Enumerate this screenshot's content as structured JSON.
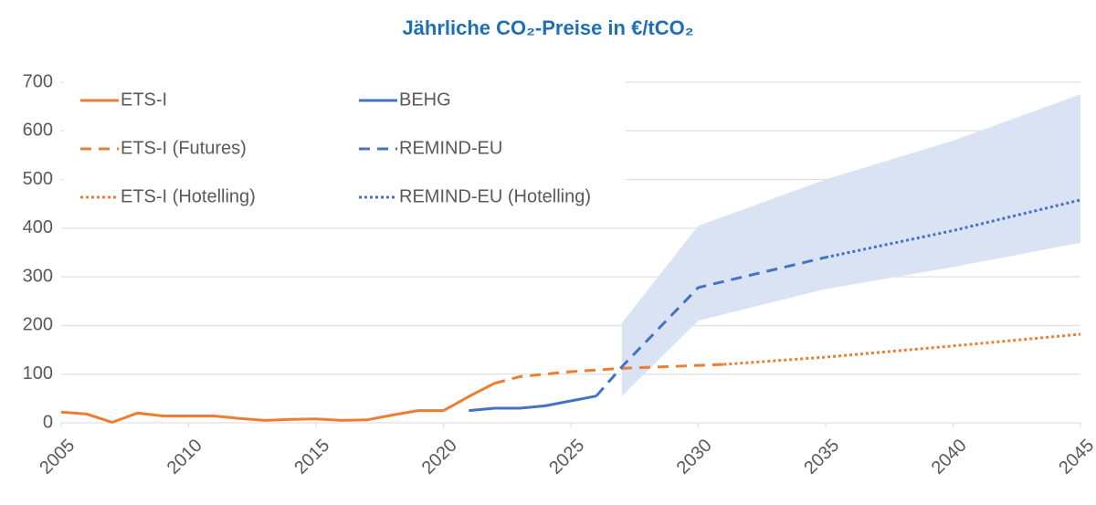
{
  "chart_data": {
    "type": "line",
    "title": "Jährliche CO₂-Preise in €/tCO₂",
    "xlim": [
      2005,
      2045
    ],
    "xticks": [
      2005,
      2010,
      2015,
      2020,
      2025,
      2030,
      2035,
      2040,
      2045
    ],
    "ylim": [
      0,
      700
    ],
    "yticks": [
      0,
      100,
      200,
      300,
      400,
      500,
      600,
      700
    ],
    "grid": true,
    "legend": "upper left",
    "band": {
      "color": "#dae3f3",
      "x": [
        2027,
        2030,
        2035,
        2040,
        2045
      ],
      "lower": [
        55,
        210,
        275,
        320,
        370
      ],
      "upper": [
        205,
        405,
        500,
        580,
        675
      ]
    },
    "series": [
      {
        "name": "ETS-I",
        "color": "#ed7d31",
        "dash": "solid",
        "x": [
          2005,
          2006,
          2007,
          2008,
          2009,
          2010,
          2011,
          2012,
          2013,
          2014,
          2015,
          2016,
          2017,
          2018,
          2019,
          2020,
          2021,
          2022
        ],
        "values": [
          22,
          18,
          1,
          20,
          14,
          14,
          14,
          9,
          5,
          7,
          8,
          5,
          6,
          16,
          25,
          25,
          54,
          81
        ]
      },
      {
        "name": "BEHG",
        "color": "#4472c4",
        "dash": "solid",
        "x": [
          2021,
          2022,
          2023,
          2024,
          2025,
          2026
        ],
        "values": [
          25,
          30,
          30,
          35,
          45,
          55
        ]
      },
      {
        "name": "ETS-I (Futures)",
        "color": "#ed7d31",
        "dash": "dashed",
        "x": [
          2022,
          2023,
          2025,
          2027,
          2030,
          2031
        ],
        "values": [
          81,
          95,
          105,
          112,
          118,
          120
        ]
      },
      {
        "name": "REMIND-EU",
        "color": "#4472c4",
        "dash": "dashed",
        "x": [
          2026,
          2027,
          2030,
          2035
        ],
        "values": [
          55,
          115,
          278,
          340
        ]
      },
      {
        "name": "ETS-I (Hotelling)",
        "color": "#ed7d31",
        "dash": "dotted",
        "x": [
          2031,
          2035,
          2040,
          2045
        ],
        "values": [
          120,
          135,
          158,
          182
        ]
      },
      {
        "name": "REMIND-EU (Hotelling)",
        "color": "#4472c4",
        "dash": "dotted",
        "x": [
          2035,
          2040,
          2045
        ],
        "values": [
          340,
          395,
          458
        ]
      }
    ]
  }
}
